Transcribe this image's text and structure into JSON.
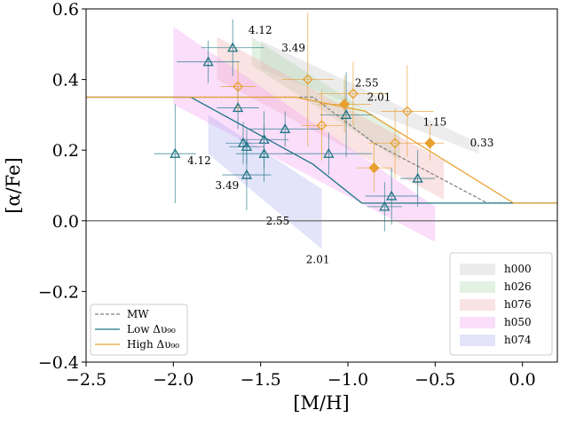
{
  "chart_data": {
    "type": "scatter",
    "xlabel": "[M/H]",
    "ylabel": "[α/Fe]",
    "xlim": [
      -2.5,
      0.2
    ],
    "ylim": [
      -0.4,
      0.6
    ],
    "xticks": [
      -2.5,
      -2.0,
      -1.5,
      -1.0,
      -0.5,
      0.0
    ],
    "xtick_labels": [
      "−2.5",
      "−2.0",
      "−1.5",
      "−1.0",
      "−0.5",
      "0.0"
    ],
    "yticks": [
      -0.4,
      -0.2,
      0.0,
      0.2,
      0.4,
      0.6
    ],
    "ytick_labels": [
      "−0.4",
      "−0.2",
      "0.0",
      "0.2",
      "0.4",
      "0.6"
    ],
    "zero_line": 0.0,
    "colors": {
      "low": "#1f7585",
      "high": "#e8a030",
      "mw": "#808080",
      "h000": "#c8c8c8",
      "h026": "#b0d8b0",
      "h076": "#f0b0b0",
      "h050": "#f0a0f0",
      "h074": "#b0b0f0"
    },
    "bands": [
      {
        "name": "h000",
        "poly": [
          [
            -1.5,
            0.51
          ],
          [
            -0.25,
            0.22
          ],
          [
            -0.25,
            0.19
          ],
          [
            -1.5,
            0.43
          ]
        ]
      },
      {
        "name": "h026",
        "poly": [
          [
            -1.55,
            0.52
          ],
          [
            -0.7,
            0.25
          ],
          [
            -0.7,
            0.17
          ],
          [
            -1.55,
            0.44
          ]
        ]
      },
      {
        "name": "h076",
        "poly": [
          [
            -1.75,
            0.52
          ],
          [
            -0.45,
            0.17
          ],
          [
            -0.45,
            0.06
          ],
          [
            -1.75,
            0.4
          ]
        ]
      },
      {
        "name": "h050",
        "poly": [
          [
            -2.0,
            0.55
          ],
          [
            -0.5,
            0.04
          ],
          [
            -0.5,
            -0.06
          ],
          [
            -2.0,
            0.33
          ]
        ]
      },
      {
        "name": "h074",
        "poly": [
          [
            -1.8,
            0.3
          ],
          [
            -1.15,
            0.09
          ],
          [
            -1.15,
            -0.08
          ],
          [
            -1.8,
            0.19
          ]
        ]
      }
    ],
    "mw_line": [
      [
        -2.5,
        0.35
      ],
      [
        -1.2,
        0.35
      ],
      [
        -0.85,
        0.22
      ],
      [
        -0.2,
        0.05
      ],
      [
        0.2,
        0.05
      ]
    ],
    "low_line": [
      [
        -2.5,
        0.35
      ],
      [
        -1.9,
        0.35
      ],
      [
        -1.2,
        0.16
      ],
      [
        -0.92,
        0.05
      ],
      [
        0.2,
        0.05
      ]
    ],
    "high_line": [
      [
        -2.5,
        0.35
      ],
      [
        -1.3,
        0.35
      ],
      [
        -0.9,
        0.31
      ],
      [
        -0.05,
        0.05
      ],
      [
        0.2,
        0.05
      ]
    ],
    "low_points": [
      {
        "x": -1.66,
        "y": 0.49,
        "xe": 0.18,
        "ye": 0.08
      },
      {
        "x": -1.8,
        "y": 0.45,
        "xe": 0.18,
        "ye": 0.06
      },
      {
        "x": -1.63,
        "y": 0.32,
        "xe": 0.12,
        "ye": 0.06
      },
      {
        "x": -1.36,
        "y": 0.26,
        "xe": 0.2,
        "ye": 0.05
      },
      {
        "x": -1.48,
        "y": 0.23,
        "xe": 0.14,
        "ye": 0.08
      },
      {
        "x": -1.6,
        "y": 0.22,
        "xe": 0.1,
        "ye": 0.06
      },
      {
        "x": -1.58,
        "y": 0.21,
        "xe": 0.1,
        "ye": 0.05
      },
      {
        "x": -1.48,
        "y": 0.19,
        "xe": 0.16,
        "ye": 0.08
      },
      {
        "x": -1.11,
        "y": 0.19,
        "xe": 0.25,
        "ye": 0.06
      },
      {
        "x": -1.99,
        "y": 0.19,
        "xe": 0.12,
        "ye": 0.14
      },
      {
        "x": -1.58,
        "y": 0.13,
        "xe": 0.14,
        "ye": 0.1
      },
      {
        "x": -1.01,
        "y": 0.3,
        "xe": 0.15,
        "ye": 0.12
      },
      {
        "x": -0.6,
        "y": 0.12,
        "xe": 0.1,
        "ye": 0.08
      },
      {
        "x": -0.75,
        "y": 0.07,
        "xe": 0.15,
        "ye": 0.08
      },
      {
        "x": -0.79,
        "y": 0.04,
        "xe": 0.1,
        "ye": 0.07
      }
    ],
    "high_open_points": [
      {
        "x": -1.23,
        "y": 0.4,
        "xe": 0.15,
        "ye": 0.19
      },
      {
        "x": -1.63,
        "y": 0.38,
        "xe": 0.1,
        "ye": 0.07
      },
      {
        "x": -0.97,
        "y": 0.36,
        "xe": 0.2,
        "ye": 0.09
      },
      {
        "x": -0.66,
        "y": 0.31,
        "xe": 0.15,
        "ye": 0.13
      },
      {
        "x": -1.15,
        "y": 0.27,
        "xe": 0.12,
        "ye": 0.1
      },
      {
        "x": -0.73,
        "y": 0.22,
        "xe": 0.15,
        "ye": 0.1
      }
    ],
    "high_filled_points": [
      {
        "x": -1.02,
        "y": 0.33,
        "xe": 0.15,
        "ye": 0.08
      },
      {
        "x": -0.53,
        "y": 0.22,
        "xe": 0.08,
        "ye": 0.05
      },
      {
        "x": -0.85,
        "y": 0.15,
        "xe": 0.1,
        "ye": 0.07
      }
    ],
    "annotations": [
      {
        "text": "4.12",
        "x": -1.57,
        "y": 0.54
      },
      {
        "text": "3.49",
        "x": -1.38,
        "y": 0.49
      },
      {
        "text": "2.55",
        "x": -0.96,
        "y": 0.39
      },
      {
        "text": "2.01",
        "x": -0.89,
        "y": 0.35
      },
      {
        "text": "1.15",
        "x": -0.57,
        "y": 0.28
      },
      {
        "text": "0.33",
        "x": -0.3,
        "y": 0.22
      },
      {
        "text": "4.12",
        "x": -1.92,
        "y": 0.17
      },
      {
        "text": "3.49",
        "x": -1.76,
        "y": 0.1
      },
      {
        "text": "2.55",
        "x": -1.47,
        "y": 0.0
      },
      {
        "text": "2.01",
        "x": -1.24,
        "y": -0.11
      }
    ],
    "legend_left": [
      {
        "label": "MW",
        "style": "mw"
      },
      {
        "label": "Low Δυ₉₀",
        "style": "low"
      },
      {
        "label": "High Δυ₉₀",
        "style": "high"
      }
    ],
    "legend_right": [
      {
        "label": "h000",
        "style": "h000"
      },
      {
        "label": "h026",
        "style": "h026"
      },
      {
        "label": "h076",
        "style": "h076"
      },
      {
        "label": "h050",
        "style": "h050"
      },
      {
        "label": "h074",
        "style": "h074"
      }
    ]
  }
}
